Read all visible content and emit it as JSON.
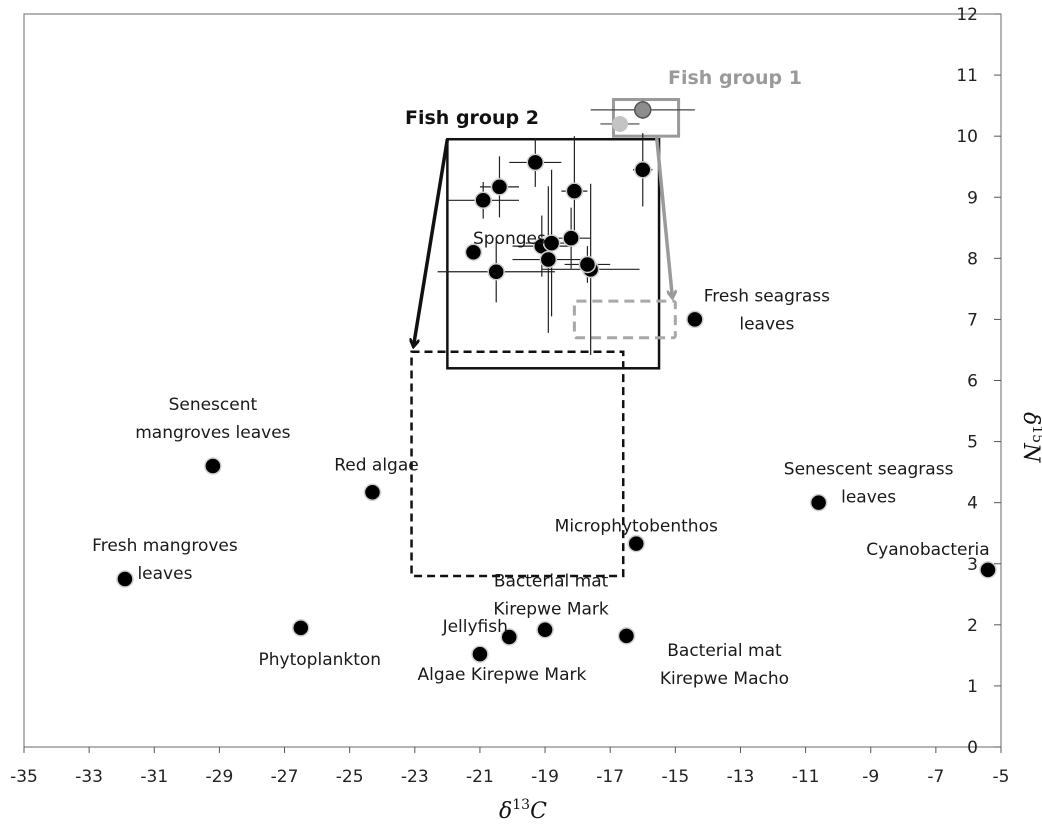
{
  "chart_data": {
    "type": "scatter",
    "xlabel": "δ13C",
    "ylabel": "δ15N",
    "xlabel_parts": {
      "pre": "δ",
      "sup": "13",
      "post": "C"
    },
    "ylabel_parts": {
      "pre": "δ",
      "sup": "15",
      "post": "N"
    },
    "xlim": [
      -35,
      -5
    ],
    "ylim": [
      0,
      12
    ],
    "x_ticks": [
      "-35",
      "-33",
      "-31",
      "-29",
      "-27",
      "-25",
      "-23",
      "-21",
      "-19",
      "-17",
      "-15",
      "-13",
      "-11",
      "-9",
      "-7",
      "-5"
    ],
    "y_ticks": [
      "0",
      "1",
      "2",
      "3",
      "4",
      "5",
      "6",
      "7",
      "8",
      "9",
      "10",
      "11",
      "12"
    ],
    "x_tick_values": [
      -35,
      -33,
      -31,
      -29,
      -27,
      -25,
      -23,
      -21,
      -19,
      -17,
      -15,
      -13,
      -11,
      -9,
      -7,
      -5
    ],
    "y_tick_values": [
      0,
      1,
      2,
      3,
      4,
      5,
      6,
      7,
      8,
      9,
      10,
      11,
      12
    ],
    "grid": false,
    "sources": [
      {
        "label": [
          "Senescent",
          "mangroves leaves"
        ],
        "x": -29.2,
        "y": 4.6
      },
      {
        "label": [
          "Red algae"
        ],
        "x": -24.3,
        "y": 4.17
      },
      {
        "label": [
          "Fresh mangroves",
          "leaves"
        ],
        "x": -31.9,
        "y": 2.75
      },
      {
        "label": [
          "Phytoplankton"
        ],
        "x": -26.5,
        "y": 1.95
      },
      {
        "label": [
          "Jellyfish"
        ],
        "x": -20.1,
        "y": 1.8
      },
      {
        "label": [
          "Algae Kirepwe Mark"
        ],
        "x": -21.0,
        "y": 1.52
      },
      {
        "label": [
          "Bacterial mat",
          "Kirepwe Mark"
        ],
        "x": -19.0,
        "y": 1.92
      },
      {
        "label": [
          "Bacterial mat",
          "Kirepwe Macho"
        ],
        "x": -16.5,
        "y": 1.82
      },
      {
        "label": [
          "Microphytobenthos"
        ],
        "x": -16.2,
        "y": 3.33
      },
      {
        "label": [
          "Senescent seagrass",
          "leaves"
        ],
        "x": -10.6,
        "y": 4.0
      },
      {
        "label": [
          "Cyanobacteria"
        ],
        "x": -5.4,
        "y": 2.9
      },
      {
        "label": [
          "Fresh seagrass",
          "leaves"
        ],
        "x": -14.4,
        "y": 7.0
      },
      {
        "label": [
          "Sponges"
        ],
        "x": -21.2,
        "y": 8.1
      }
    ],
    "fish_group_2": {
      "label": "Fish group 2",
      "points": [
        {
          "x": -19.3,
          "y": 9.57,
          "xerr": 0.8,
          "yerr": 0.4
        },
        {
          "x": -20.4,
          "y": 9.17,
          "xerr": 0.6,
          "yerr": 0.5
        },
        {
          "x": -20.9,
          "y": 8.95,
          "xerr": 1.1,
          "yerr": 0.3
        },
        {
          "x": -18.1,
          "y": 9.1,
          "xerr": 0.4,
          "yerr": 0.9
        },
        {
          "x": -16.0,
          "y": 9.45,
          "xerr": 0.3,
          "yerr": 0.6
        },
        {
          "x": -19.1,
          "y": 8.2,
          "xerr": 0.9,
          "yerr": 0.5
        },
        {
          "x": -18.8,
          "y": 8.25,
          "xerr": 0.8,
          "yerr": 1.2
        },
        {
          "x": -18.2,
          "y": 8.33,
          "xerr": 0.6,
          "yerr": 0.5
        },
        {
          "x": -18.9,
          "y": 7.98,
          "xerr": 1.1,
          "yerr": 1.2
        },
        {
          "x": -20.5,
          "y": 7.78,
          "xerr": 1.8,
          "yerr": 0.5
        },
        {
          "x": -17.6,
          "y": 7.82,
          "xerr": 1.5,
          "yerr": 1.4
        },
        {
          "x": -17.7,
          "y": 7.9,
          "xerr": 0.7,
          "yerr": 0.3
        }
      ],
      "source_box": {
        "x": [
          -22.0,
          -15.5
        ],
        "y": [
          6.2,
          9.95
        ]
      },
      "corrected_box": {
        "x": [
          -23.1,
          -16.6
        ],
        "y": [
          2.8,
          6.47
        ]
      }
    },
    "fish_group_1": {
      "label": "Fish group 1",
      "points": [
        {
          "x": -16.0,
          "y": 10.43,
          "xerr": 1.6,
          "yerr": 0.15
        },
        {
          "x": -16.7,
          "y": 10.2,
          "xerr": 0.6,
          "yerr": 0.1
        }
      ],
      "source_box": {
        "x": [
          -16.9,
          -14.9
        ],
        "y": [
          10.0,
          10.6
        ]
      },
      "corrected_box": {
        "x": [
          -18.1,
          -15.0
        ],
        "y": [
          6.7,
          7.3
        ]
      }
    }
  }
}
